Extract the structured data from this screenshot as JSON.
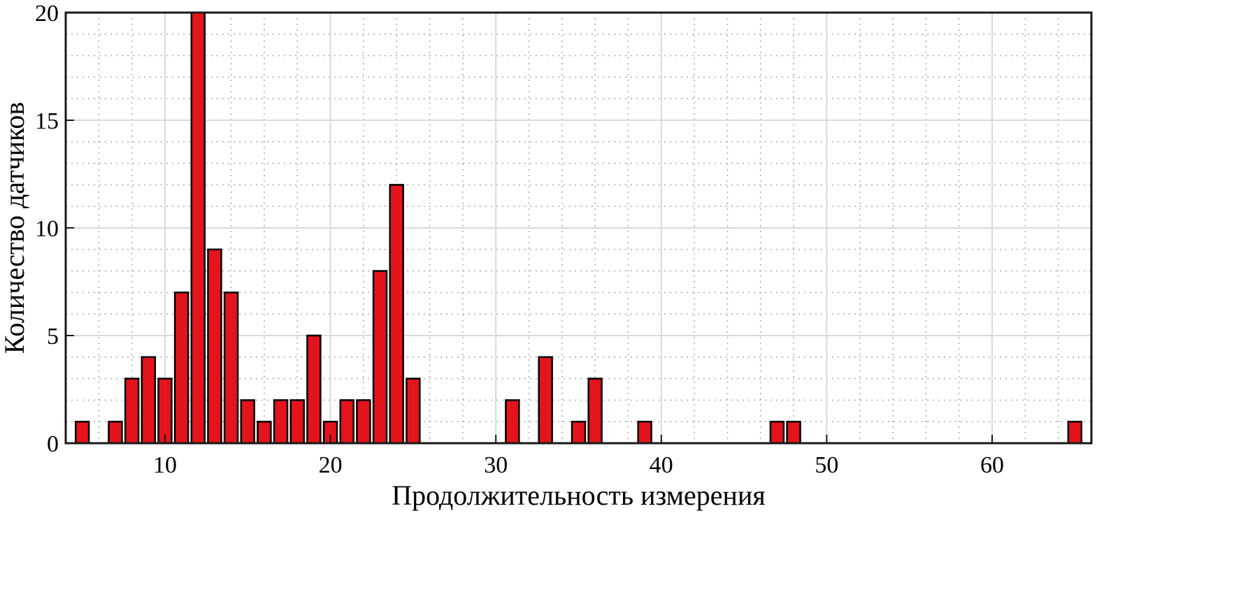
{
  "chart_data": {
    "type": "bar",
    "xlabel": "Продолжительность измерения",
    "ylabel": "Количество датчиков",
    "xlim": [
      4,
      66
    ],
    "ylim": [
      0,
      20
    ],
    "x_ticks": [
      10,
      20,
      30,
      40,
      50,
      60
    ],
    "y_ticks": [
      0,
      5,
      10,
      15,
      20
    ],
    "grid": true,
    "minor_grid": true,
    "bar_color": "#e3141b",
    "bar_edge_color": "#000000",
    "x": [
      5,
      7,
      8,
      9,
      10,
      11,
      12,
      13,
      14,
      15,
      16,
      17,
      18,
      19,
      20,
      21,
      22,
      23,
      24,
      25,
      31,
      33,
      35,
      36,
      39,
      47,
      48,
      65
    ],
    "values": [
      1,
      1,
      3,
      4,
      3,
      7,
      20,
      9,
      7,
      2,
      1,
      2,
      2,
      5,
      1,
      2,
      2,
      8,
      12,
      3,
      2,
      4,
      1,
      3,
      1,
      1,
      1,
      1
    ]
  }
}
